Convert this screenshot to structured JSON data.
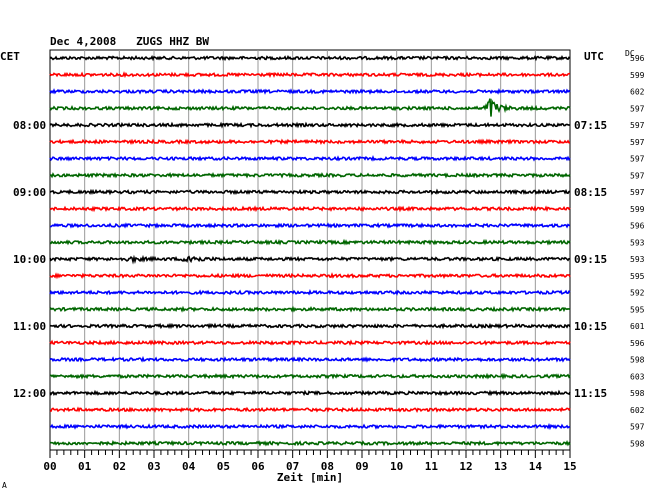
{
  "chart_data": {
    "type": "line",
    "title": "Dec 4,2008   ZUGS HHZ BW",
    "xlabel": "Zeit [min]",
    "left_timezone": "CET",
    "right_timezone": "UTC",
    "dc_header": "DC",
    "x_ticks": [
      "00",
      "01",
      "02",
      "03",
      "04",
      "05",
      "06",
      "07",
      "08",
      "09",
      "10",
      "11",
      "12",
      "13",
      "14",
      "15"
    ],
    "xlim": [
      0,
      15
    ],
    "line_colors": [
      "#000000",
      "#ff0000",
      "#0000ff",
      "#006600"
    ],
    "left_hour_labels": [
      {
        "row": 4,
        "label": "08:00"
      },
      {
        "row": 8,
        "label": "09:00"
      },
      {
        "row": 12,
        "label": "10:00"
      },
      {
        "row": 16,
        "label": "11:00"
      },
      {
        "row": 20,
        "label": "12:00"
      }
    ],
    "right_hour_labels": [
      {
        "row": 4,
        "label": "07:15"
      },
      {
        "row": 8,
        "label": "08:15"
      },
      {
        "row": 12,
        "label": "09:15"
      },
      {
        "row": 16,
        "label": "10:15"
      },
      {
        "row": 20,
        "label": "11:15"
      }
    ],
    "dc_values": [
      596,
      599,
      602,
      597,
      597,
      597,
      597,
      597,
      597,
      599,
      596,
      593,
      593,
      595,
      592,
      595,
      601,
      596,
      598,
      603,
      598,
      602,
      597,
      598
    ],
    "events": [
      {
        "row": 3,
        "minute": 12.65,
        "amplitude": 3.2
      },
      {
        "row": 12,
        "minute": 3.95,
        "amplitude": 1.6
      },
      {
        "row": 12,
        "minute": 2.3,
        "amplitude": 0.6
      }
    ],
    "footer_mark": "A"
  }
}
